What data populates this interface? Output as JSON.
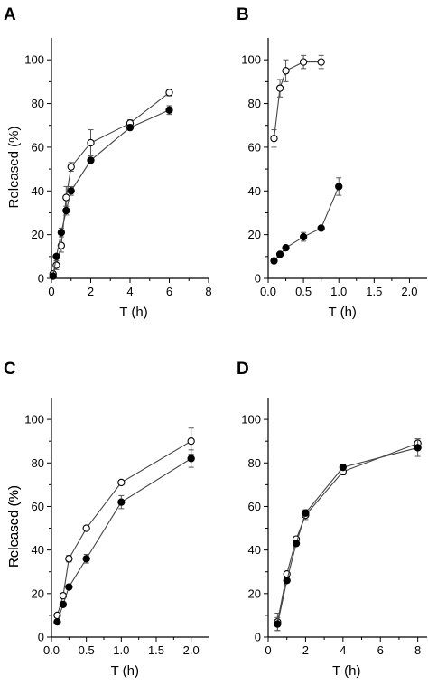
{
  "chart_data": [
    {
      "panel": "A",
      "type": "line",
      "xlabel": "T (h)",
      "ylabel": "Released (%)",
      "xlim": [
        0,
        8
      ],
      "ylim": [
        0,
        110
      ],
      "xticks": [
        "0",
        "2",
        "4",
        "6",
        "8"
      ],
      "yticks": [
        "0",
        "20",
        "40",
        "60",
        "80",
        "100"
      ],
      "series": [
        {
          "marker": "open",
          "x": [
            0.08,
            0.25,
            0.5,
            0.75,
            1,
            2,
            4,
            6
          ],
          "y": [
            2,
            6,
            15,
            37,
            51,
            62,
            71,
            85
          ],
          "err": [
            1,
            2,
            3,
            5,
            2,
            6,
            1.5,
            1.5
          ]
        },
        {
          "marker": "filled",
          "x": [
            0.08,
            0.25,
            0.5,
            0.75,
            1,
            2,
            4,
            6
          ],
          "y": [
            1,
            10,
            21,
            31,
            40,
            54,
            69,
            77
          ],
          "err": [
            1,
            1,
            2,
            2,
            2,
            1,
            1,
            2
          ]
        }
      ]
    },
    {
      "panel": "B",
      "type": "line",
      "xlabel": "T (h)",
      "ylabel": "",
      "xlim": [
        0,
        2.25
      ],
      "ylim": [
        0,
        110
      ],
      "xticks": [
        "0.0",
        "0.5",
        "1.0",
        "1.5",
        "2.0"
      ],
      "yticks": [
        "0",
        "20",
        "40",
        "60",
        "80",
        "100"
      ],
      "series": [
        {
          "marker": "open",
          "x": [
            0.083,
            0.167,
            0.25,
            0.5,
            0.75
          ],
          "y": [
            64,
            87,
            95,
            99,
            99
          ],
          "err": [
            4,
            4,
            5,
            3,
            3
          ]
        },
        {
          "marker": "filled",
          "x": [
            0.083,
            0.167,
            0.25,
            0.5,
            0.75,
            1.0
          ],
          "y": [
            8,
            11,
            14,
            19,
            23,
            42
          ],
          "err": [
            1,
            1,
            1,
            2,
            1,
            4
          ]
        }
      ]
    },
    {
      "panel": "C",
      "type": "line",
      "xlabel": "T (h)",
      "ylabel": "Released (%)",
      "xlim": [
        0,
        2.25
      ],
      "ylim": [
        0,
        110
      ],
      "xticks": [
        "0.0",
        "0.5",
        "1.0",
        "1.5",
        "2.0"
      ],
      "yticks": [
        "0",
        "20",
        "40",
        "60",
        "80",
        "100"
      ],
      "series": [
        {
          "marker": "open",
          "x": [
            0.083,
            0.167,
            0.25,
            0.5,
            1.0,
            2.0
          ],
          "y": [
            10,
            19,
            36,
            50,
            71,
            90
          ],
          "err": [
            1,
            1,
            1.5,
            1,
            1,
            6
          ]
        },
        {
          "marker": "filled",
          "x": [
            0.083,
            0.167,
            0.25,
            0.5,
            1.0,
            2.0
          ],
          "y": [
            7,
            15,
            23,
            36,
            62,
            82
          ],
          "err": [
            1,
            1,
            1,
            2,
            3,
            4
          ]
        }
      ]
    },
    {
      "panel": "D",
      "type": "line",
      "xlabel": "T (h)",
      "ylabel": "Released (%)",
      "xlim": [
        0,
        8.5
      ],
      "ylim": [
        0,
        110
      ],
      "xticks": [
        "0",
        "2",
        "4",
        "6",
        "8"
      ],
      "yticks": [
        "0",
        "20",
        "40",
        "60",
        "80",
        "100"
      ],
      "series": [
        {
          "marker": "open",
          "x": [
            0.5,
            1,
            1.5,
            2,
            4,
            8
          ],
          "y": [
            7,
            29,
            45,
            56,
            76,
            89
          ],
          "err": [
            4,
            1,
            1,
            2,
            1.5,
            2
          ]
        },
        {
          "marker": "filled",
          "x": [
            0.5,
            1,
            1.5,
            2,
            4,
            8
          ],
          "y": [
            6,
            26,
            43,
            57,
            78,
            87
          ],
          "err": [
            3,
            1,
            1,
            1.5,
            1,
            4
          ]
        }
      ]
    }
  ]
}
